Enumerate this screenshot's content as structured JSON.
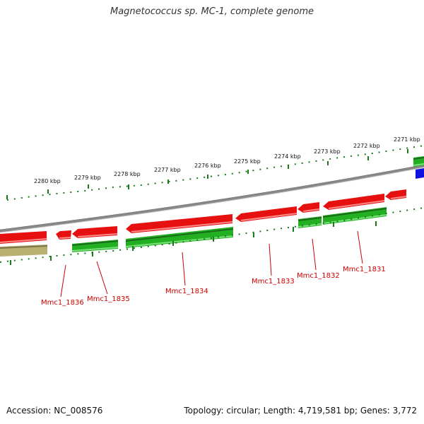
{
  "title": "Magnetococcus sp. MC-1, complete genome",
  "footer": {
    "accession": "Accession: NC_008576",
    "summary": "Topology: circular; Length: 4,719,581 bp; Genes: 3,772"
  },
  "scale_labels": [
    "2280 kbp",
    "2279 kbp",
    "2278 kbp",
    "2277 kbp",
    "2276 kbp",
    "2275 kbp",
    "2274 kbp",
    "2273 kbp",
    "2272 kbp",
    "2271 kbp"
  ],
  "gene_labels": [
    "Mmc1_1836",
    "Mmc1_1835",
    "Mmc1_1834",
    "Mmc1_1833",
    "Mmc1_1832",
    "Mmc1_1831"
  ],
  "colors": {
    "cds_forward": "#e61010",
    "cds_reverse": "#22b022",
    "rna": "#1010e0",
    "other": "#b8b070",
    "backbone": "#888888",
    "tick": "#1a7a1a",
    "label": "#cc0000"
  }
}
